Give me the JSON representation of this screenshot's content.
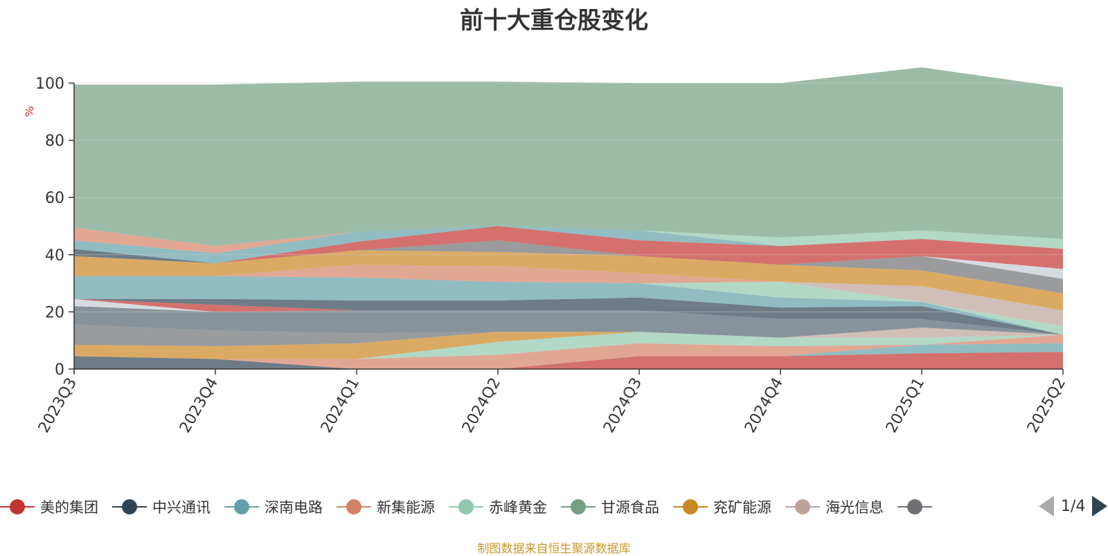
{
  "chart_data": {
    "type": "area",
    "title": "前十大重仓股变化",
    "ylabel": "%",
    "ylim": [
      0,
      100
    ],
    "yticks": [
      0,
      20,
      40,
      60,
      80,
      100
    ],
    "grid": true,
    "x": [
      "2023Q3",
      "2023Q4",
      "2024Q1",
      "2024Q2",
      "2024Q3",
      "2024Q4",
      "2025Q1",
      "2025Q2"
    ],
    "series": [
      {
        "name": "美的集团",
        "color": "#c23531",
        "values": [
          0,
          0,
          0,
          0,
          4.5,
          4.5,
          5.5,
          6
        ]
      },
      {
        "name": "中兴通讯",
        "color": "#2f4554",
        "values": [
          4.5,
          3.5,
          0,
          0,
          0,
          0,
          0,
          0
        ]
      },
      {
        "name": "深南电路",
        "color": "#61a0a8",
        "values": [
          0,
          0,
          0,
          0,
          0,
          0,
          3,
          3
        ]
      },
      {
        "name": "新集能源",
        "color": "#d48265",
        "values": [
          0,
          0,
          3.5,
          5,
          4.5,
          3.5,
          0,
          3
        ]
      },
      {
        "name": "赤峰黄金",
        "color": "#91c7ae",
        "values": [
          0,
          0,
          0,
          4.5,
          4,
          3,
          2.5,
          0
        ]
      },
      {
        "name": "甘源食品",
        "color": "#749f83",
        "values": [
          0,
          0,
          0,
          0,
          0,
          0,
          0,
          0
        ]
      },
      {
        "name": "兖矿能源",
        "color": "#ca8622",
        "values": [
          4,
          4.5,
          5.5,
          3.5,
          0,
          0,
          0,
          0
        ]
      },
      {
        "name": "海光信息",
        "color": "#bda29a",
        "values": [
          0,
          0,
          0,
          0,
          0,
          0,
          3.5,
          0
        ]
      },
      {
        "name": "",
        "color": "#6e7074",
        "values": [
          7,
          5.5,
          3.5,
          0,
          0,
          0,
          0,
          0
        ]
      },
      {
        "color": "#546570",
        "values": [
          6.5,
          6.5,
          8,
          7.5,
          7.5,
          6.5,
          3,
          0
        ]
      },
      {
        "color": "#c4ccd3",
        "values": [
          2.5,
          0,
          0,
          0,
          0,
          0,
          0,
          0
        ]
      },
      {
        "color": "#c23531",
        "values": [
          0,
          2.5,
          0,
          0,
          0,
          0,
          0,
          0
        ]
      },
      {
        "color": "#2f4554",
        "values": [
          0,
          2,
          3.5,
          3.5,
          4.5,
          4,
          4.5,
          0
        ]
      },
      {
        "color": "#61a0a8",
        "values": [
          8,
          8,
          8,
          6.5,
          5,
          3.5,
          1.5,
          0
        ]
      },
      {
        "color": "#91c7ae",
        "values": [
          0,
          0,
          0,
          0,
          0,
          5.5,
          0,
          3
        ]
      },
      {
        "color": "#d48265",
        "values": [
          0,
          0,
          4.5,
          5.5,
          3.5,
          0,
          0,
          0
        ]
      },
      {
        "color": "#bda29a",
        "values": [
          0,
          0,
          0,
          0,
          0,
          0,
          5.5,
          5.5
        ]
      },
      {
        "color": "#ca8622",
        "values": [
          7,
          4.5,
          5,
          5,
          6,
          6,
          5.5,
          6
        ]
      },
      {
        "color": "#6e7074",
        "values": [
          0,
          0,
          0,
          4,
          0,
          0,
          5,
          5
        ]
      },
      {
        "color": "#c4ccd3",
        "values": [
          0,
          0,
          0,
          0,
          0,
          0,
          0,
          3.5
        ]
      },
      {
        "color": "#2f4554",
        "values": [
          2.5,
          0,
          0,
          0,
          0,
          0,
          0,
          0
        ]
      },
      {
        "color": "#c23531",
        "values": [
          0,
          0,
          3,
          5,
          5.5,
          6.5,
          6,
          7
        ]
      },
      {
        "color": "#61a0a8",
        "values": [
          3,
          3.5,
          3.5,
          0,
          3.5,
          0,
          0,
          0
        ]
      },
      {
        "color": "#91c7ae",
        "values": [
          0,
          0,
          0,
          0,
          0,
          3,
          3,
          3.5
        ]
      },
      {
        "color": "#d48265",
        "values": [
          4.5,
          2.5,
          0,
          0,
          0,
          0,
          0,
          0
        ]
      },
      {
        "color": "#749f83",
        "values": [
          50,
          56.5,
          52.5,
          50.5,
          51.5,
          54,
          57,
          53
        ]
      }
    ]
  },
  "legend": {
    "items": [
      {
        "label": "美的集团",
        "color": "#c23531"
      },
      {
        "label": "中兴通讯",
        "color": "#2f4554"
      },
      {
        "label": "深南电路",
        "color": "#61a0a8"
      },
      {
        "label": "新集能源",
        "color": "#d48265"
      },
      {
        "label": "赤峰黄金",
        "color": "#91c7ae"
      },
      {
        "label": "甘源食品",
        "color": "#749f83"
      },
      {
        "label": "兖矿能源",
        "color": "#ca8622"
      },
      {
        "label": "海光信息",
        "color": "#bda29a"
      },
      {
        "label": "",
        "color": "#6e7074"
      }
    ],
    "page": "1/4"
  },
  "footer": {
    "source": "制图数据来自恒生聚源数据库"
  },
  "colors": {
    "axis": "#333333",
    "grid": "#cccccc",
    "ylabel": "#e02020",
    "source": "#c8962a"
  }
}
